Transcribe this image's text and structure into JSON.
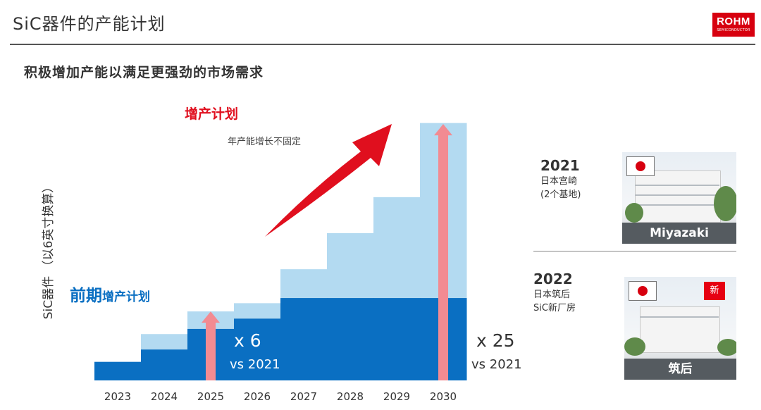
{
  "header": {
    "title": "SiC器件的产能计划",
    "subtitle": "积极增加产能以满足更强劲的市场需求",
    "logo": {
      "main": "ROHM",
      "sub": "SEMICONDUCTOR"
    }
  },
  "chart_data": {
    "type": "bar",
    "title": "",
    "ylabel": "SiC器件 （以6英寸换算）",
    "xlabel": "",
    "categories": [
      "2023",
      "2024",
      "2025",
      "2026",
      "2027",
      "2028",
      "2029",
      "2030"
    ],
    "ylim": [
      0,
      26
    ],
    "series": [
      {
        "name": "前期增产计划",
        "values": [
          1.8,
          3.0,
          5.0,
          6.0,
          8.0,
          8.0,
          8.0,
          8.0
        ]
      },
      {
        "name": "增产计划",
        "values": [
          1.8,
          4.5,
          6.7,
          7.5,
          10.8,
          14.3,
          17.8,
          25.0
        ]
      }
    ],
    "colors": {
      "early_plan": "#0a6fc2",
      "increase_plan": "#b3daf1",
      "growth_arrow": "#e00f1e",
      "multiplier_arrow": "#f28b92"
    },
    "annotations": {
      "increase_label": "增产计划",
      "increase_note": "年产能增长不固定",
      "early_label_bold": "前期",
      "early_label_rest": "增产计划",
      "mult_2025": "x 6",
      "mult_2025_sub": "vs 2021",
      "mult_2030": "x 25",
      "mult_2030_sub": "vs 2021"
    },
    "grid": false,
    "legend": "none"
  },
  "sites": [
    {
      "year": "2021",
      "line1": "日本宫崎",
      "line2": "(2个基地)",
      "caption": "Miyazaki",
      "flag": "japan-flag-icon"
    },
    {
      "year": "2022",
      "line1": "日本筑后",
      "line2": "SiC新厂房",
      "caption": "筑后",
      "badge": "新",
      "flag": "japan-flag-icon"
    }
  ]
}
